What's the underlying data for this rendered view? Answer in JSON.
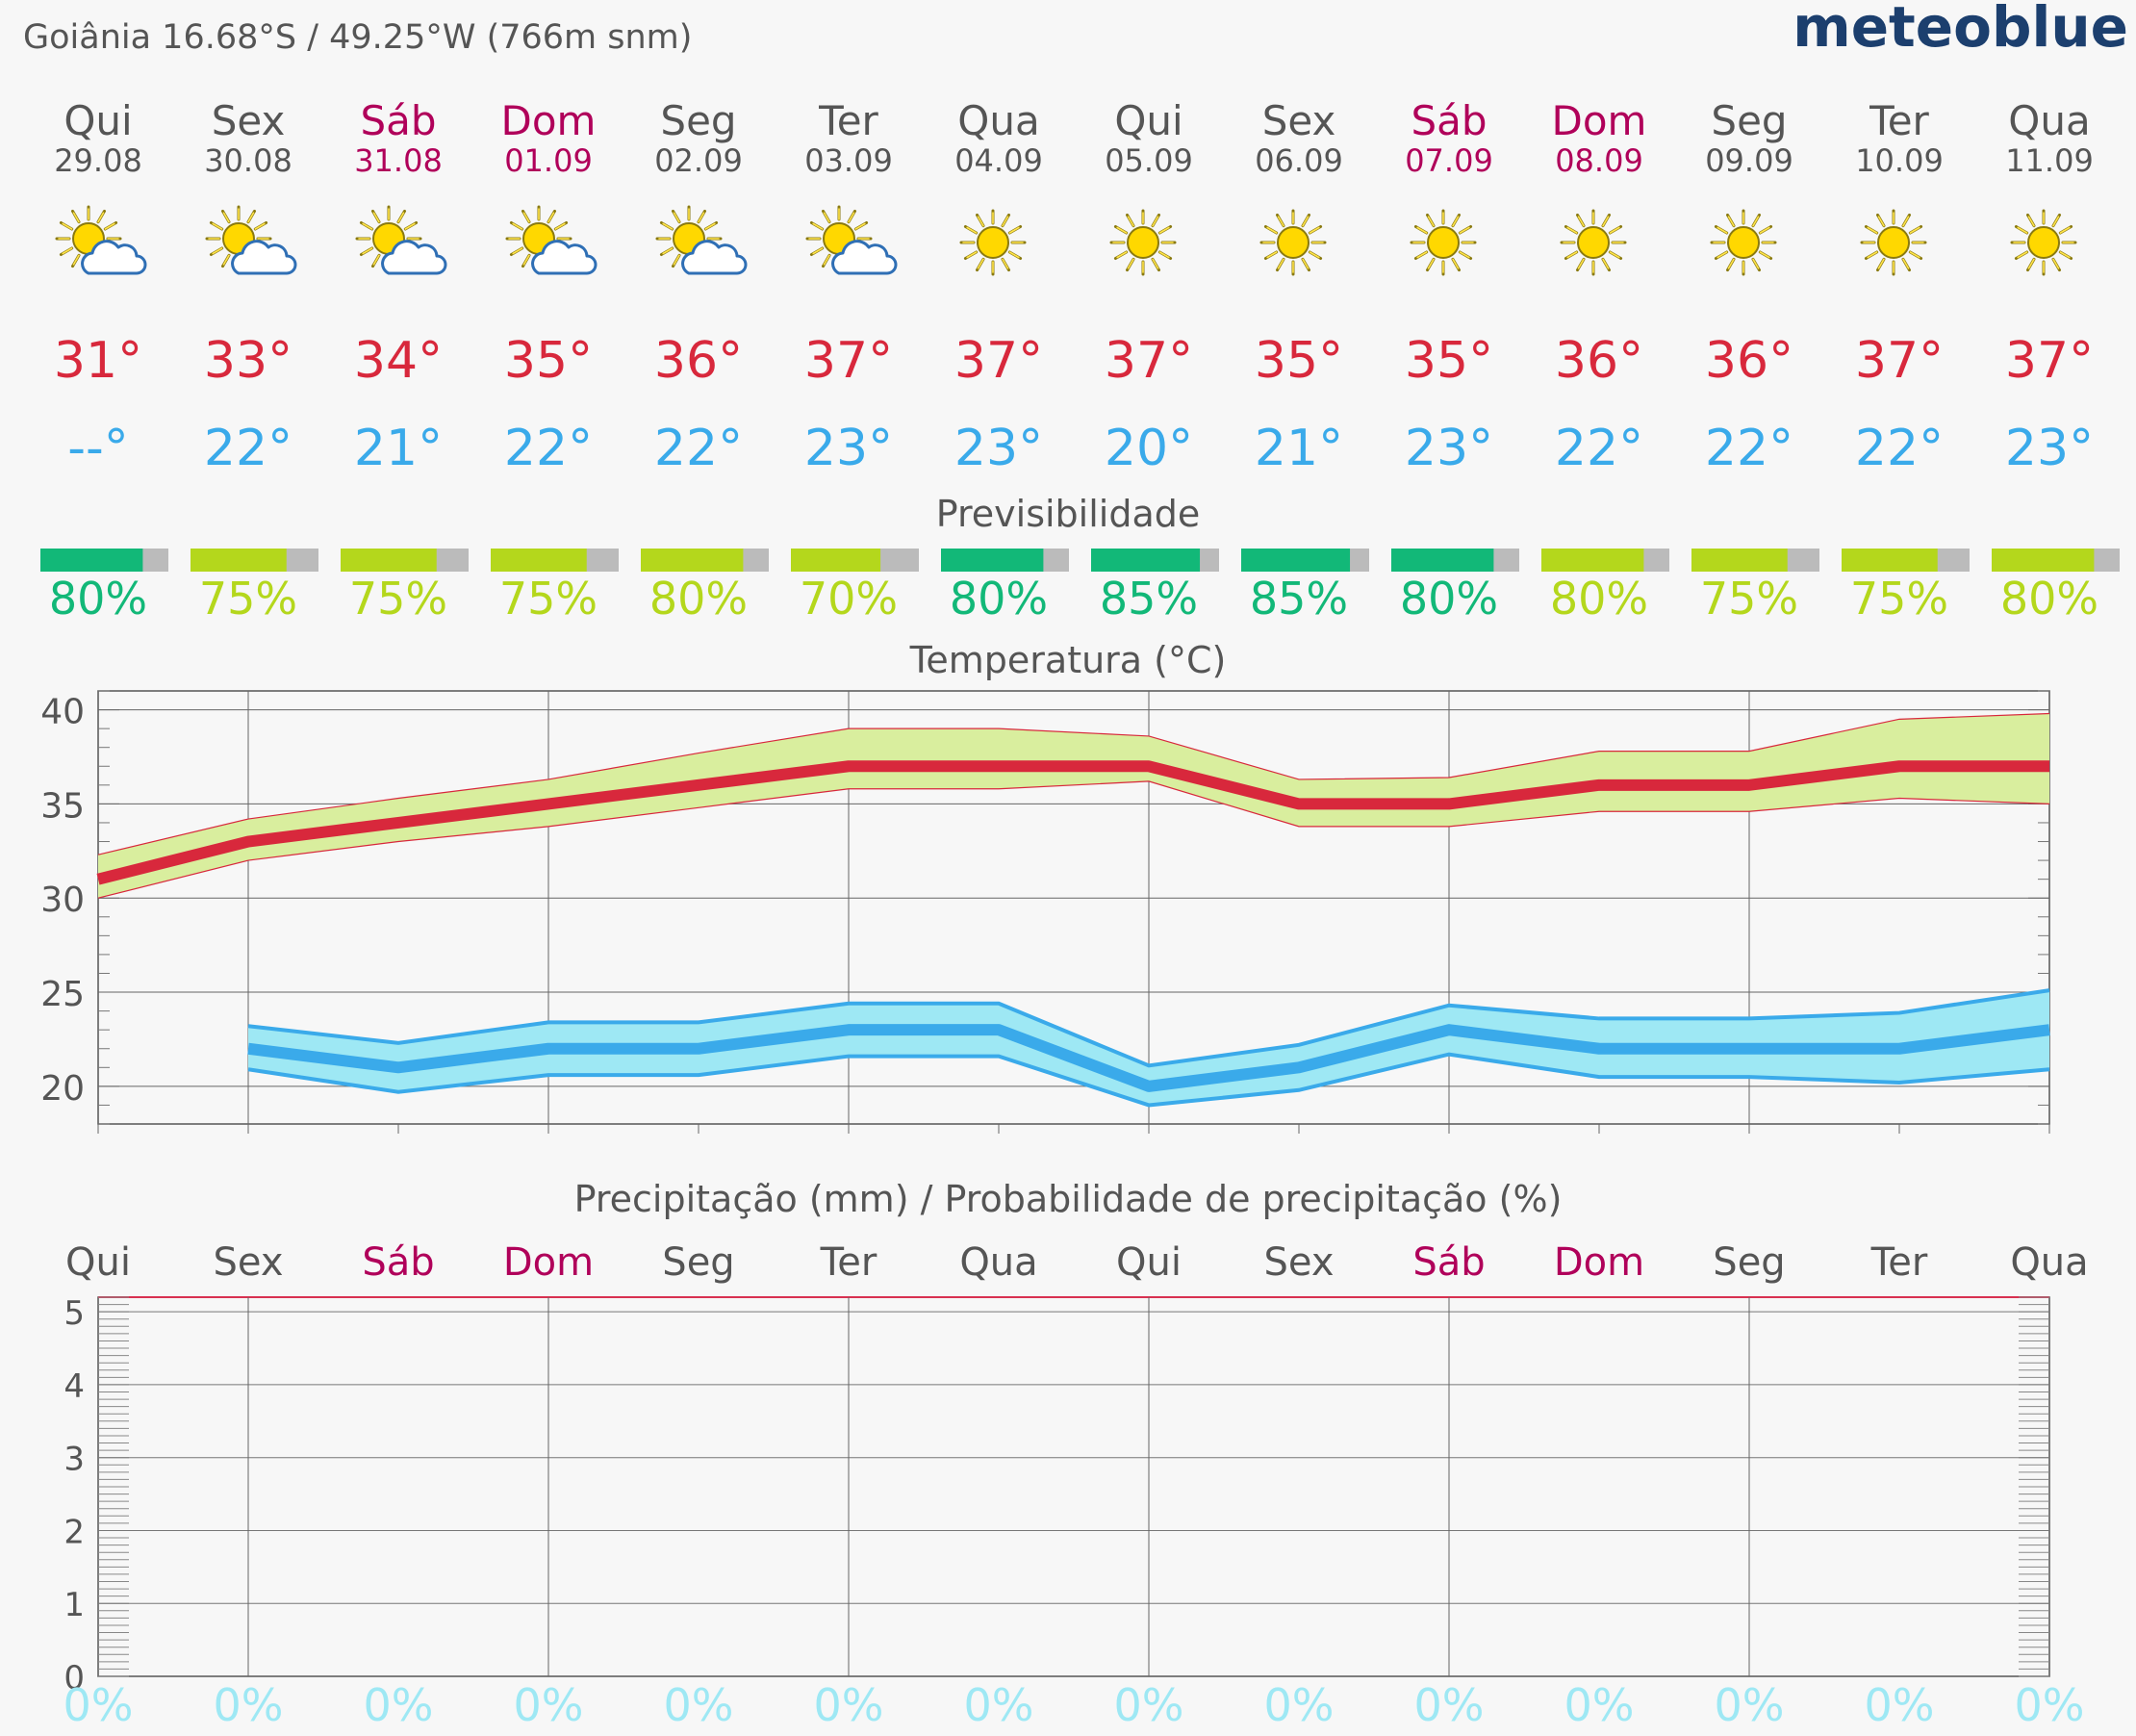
{
  "header": {
    "location": "Goiânia  16.68°S / 49.25°W (766m snm)",
    "brand": "meteoblue"
  },
  "days": [
    {
      "name": "Qui",
      "date": "29.08",
      "weekend": false,
      "icon": "sun-cloud-icon",
      "tmax": "31°",
      "tmin": "--°",
      "predict": 80,
      "predict_label": "80%",
      "predict_color": "#12b878"
    },
    {
      "name": "Sex",
      "date": "30.08",
      "weekend": false,
      "icon": "sun-cloud-icon",
      "tmax": "33°",
      "tmin": "22°",
      "predict": 75,
      "predict_label": "75%",
      "predict_color": "#b4d71c"
    },
    {
      "name": "Sáb",
      "date": "31.08",
      "weekend": true,
      "icon": "sun-cloud-icon",
      "tmax": "34°",
      "tmin": "21°",
      "predict": 75,
      "predict_label": "75%",
      "predict_color": "#b4d71c"
    },
    {
      "name": "Dom",
      "date": "01.09",
      "weekend": true,
      "icon": "sun-cloud-icon",
      "tmax": "35°",
      "tmin": "22°",
      "predict": 75,
      "predict_label": "75%",
      "predict_color": "#b4d71c"
    },
    {
      "name": "Seg",
      "date": "02.09",
      "weekend": false,
      "icon": "sun-cloud-icon",
      "tmax": "36°",
      "tmin": "22°",
      "predict": 80,
      "predict_label": "80%",
      "predict_color": "#b4d71c"
    },
    {
      "name": "Ter",
      "date": "03.09",
      "weekend": false,
      "icon": "sun-cloud-icon",
      "tmax": "37°",
      "tmin": "23°",
      "predict": 70,
      "predict_label": "70%",
      "predict_color": "#b4d71c"
    },
    {
      "name": "Qua",
      "date": "04.09",
      "weekend": false,
      "icon": "sun-icon",
      "tmax": "37°",
      "tmin": "23°",
      "predict": 80,
      "predict_label": "80%",
      "predict_color": "#12b878"
    },
    {
      "name": "Qui",
      "date": "05.09",
      "weekend": false,
      "icon": "sun-icon",
      "tmax": "37°",
      "tmin": "20°",
      "predict": 85,
      "predict_label": "85%",
      "predict_color": "#12b878"
    },
    {
      "name": "Sex",
      "date": "06.09",
      "weekend": false,
      "icon": "sun-icon",
      "tmax": "35°",
      "tmin": "21°",
      "predict": 85,
      "predict_label": "85%",
      "predict_color": "#12b878"
    },
    {
      "name": "Sáb",
      "date": "07.09",
      "weekend": true,
      "icon": "sun-icon",
      "tmax": "35°",
      "tmin": "23°",
      "predict": 80,
      "predict_label": "80%",
      "predict_color": "#12b878"
    },
    {
      "name": "Dom",
      "date": "08.09",
      "weekend": true,
      "icon": "sun-icon",
      "tmax": "36°",
      "tmin": "22°",
      "predict": 80,
      "predict_label": "80%",
      "predict_color": "#b4d71c"
    },
    {
      "name": "Seg",
      "date": "09.09",
      "weekend": false,
      "icon": "sun-icon",
      "tmax": "36°",
      "tmin": "22°",
      "predict": 75,
      "predict_label": "75%",
      "predict_color": "#b4d71c"
    },
    {
      "name": "Ter",
      "date": "10.09",
      "weekend": false,
      "icon": "sun-icon",
      "tmax": "37°",
      "tmin": "22°",
      "predict": 75,
      "predict_label": "75%",
      "predict_color": "#b4d71c"
    },
    {
      "name": "Qua",
      "date": "11.09",
      "weekend": false,
      "icon": "sun-icon",
      "tmax": "37°",
      "tmin": "23°",
      "predict": 80,
      "predict_label": "80%",
      "predict_color": "#b4d71c"
    }
  ],
  "colors": {
    "weekday": "#555555",
    "weekend": "#b0005a",
    "tmax": "#d8283c",
    "tmin": "#3aaaea",
    "max_band": "#d9ee9e",
    "min_band": "#9ee8f4",
    "min_line": "#3aaaea",
    "max_line": "#d8283c",
    "precip_pct": "#9ee8f4",
    "predict_gray": "#bbbbbb"
  },
  "chart_data": [
    {
      "type": "bar",
      "title": "Previsibilidade",
      "categories": [
        "29.08",
        "30.08",
        "31.08",
        "01.09",
        "02.09",
        "03.09",
        "04.09",
        "05.09",
        "06.09",
        "07.09",
        "08.09",
        "09.09",
        "10.09",
        "11.09"
      ],
      "values": [
        80,
        75,
        75,
        75,
        80,
        70,
        80,
        85,
        85,
        80,
        80,
        75,
        75,
        80
      ],
      "unit": "%"
    },
    {
      "type": "line",
      "title": "Temperatura (°C)",
      "ylim": [
        18,
        41
      ],
      "yticks": [
        20,
        25,
        30,
        35,
        40
      ],
      "grid": true,
      "x": [
        "29.08",
        "30.08",
        "31.08",
        "01.09",
        "02.09",
        "03.09",
        "04.09",
        "05.09",
        "06.09",
        "07.09",
        "08.09",
        "09.09",
        "10.09",
        "11.09"
      ],
      "series": [
        {
          "values": [
            31,
            33,
            34,
            35,
            36,
            37,
            37,
            37,
            35,
            35,
            36,
            36,
            37,
            37
          ],
          "range_low": [
            30,
            32,
            33,
            33.8,
            34.8,
            35.8,
            35.8,
            36.2,
            33.8,
            33.8,
            34.6,
            34.6,
            35.3,
            35
          ],
          "range_high": [
            32.3,
            34.2,
            35.3,
            36.3,
            37.7,
            39,
            39,
            38.6,
            36.3,
            36.4,
            37.8,
            37.8,
            39.5,
            39.8
          ]
        },
        {
          "values": [
            null,
            22,
            21,
            22,
            22,
            23,
            23,
            20,
            21,
            23,
            22,
            22,
            22,
            23
          ],
          "range_low": [
            null,
            20.9,
            19.7,
            20.6,
            20.6,
            21.6,
            21.6,
            19,
            19.8,
            21.7,
            20.5,
            20.5,
            20.2,
            20.9
          ],
          "range_high": [
            null,
            23.2,
            22.3,
            23.4,
            23.4,
            24.4,
            24.4,
            21.1,
            22.2,
            24.3,
            23.6,
            23.6,
            23.9,
            25.1
          ]
        }
      ]
    },
    {
      "type": "bar",
      "title": "Precipitação (mm) / Probabilidade de precipitação (%)",
      "categories": [
        "Qui",
        "Sex",
        "Sáb",
        "Dom",
        "Seg",
        "Ter",
        "Qua",
        "Qui",
        "Sex",
        "Sáb",
        "Dom",
        "Seg",
        "Ter",
        "Qua"
      ],
      "values": [
        0,
        0,
        0,
        0,
        0,
        0,
        0,
        0,
        0,
        0,
        0,
        0,
        0,
        0
      ],
      "probability": [
        0,
        0,
        0,
        0,
        0,
        0,
        0,
        0,
        0,
        0,
        0,
        0,
        0,
        0
      ],
      "probability_labels": [
        "0%",
        "0%",
        "0%",
        "0%",
        "0%",
        "0%",
        "0%",
        "0%",
        "0%",
        "0%",
        "0%",
        "0%",
        "0%",
        "0%"
      ],
      "ylim": [
        0,
        5.2
      ],
      "yticks": [
        0,
        1,
        2,
        3,
        4,
        5
      ],
      "grid": true
    }
  ]
}
